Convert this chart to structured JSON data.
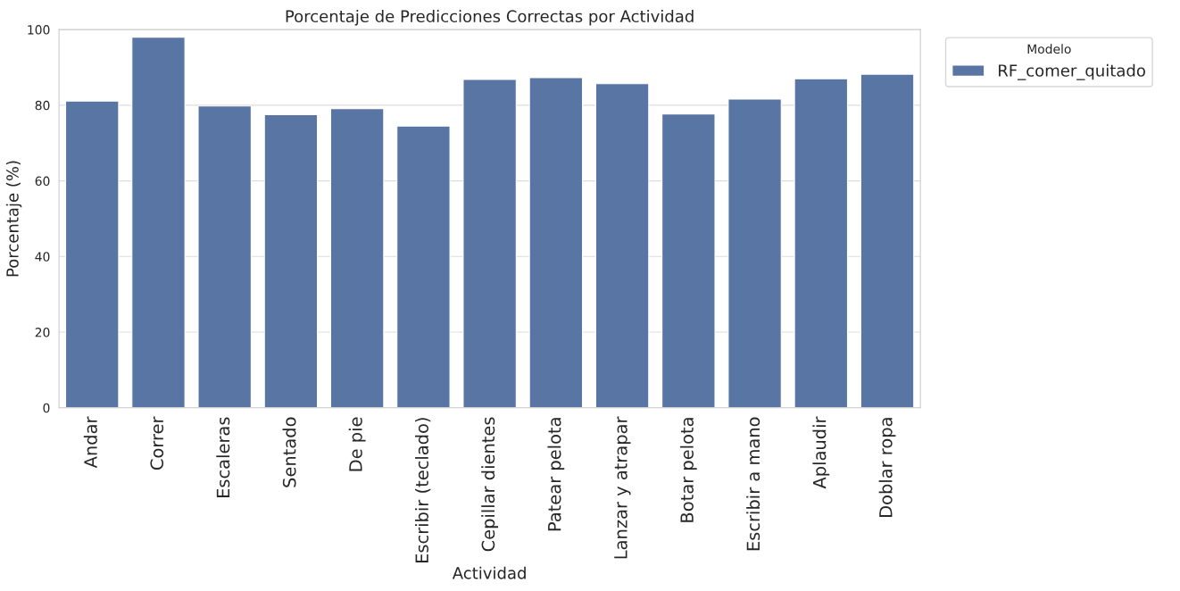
{
  "chart_data": {
    "type": "bar",
    "title": "Porcentaje de Predicciones Correctas por Actividad",
    "xlabel": "Actividad",
    "ylabel": "Porcentaje (%)",
    "legend_title": "Modelo",
    "categories": [
      "Andar",
      "Correr",
      "Escaleras",
      "Sentado",
      "De pie",
      "Escribir (teclado)",
      "Cepillar dientes",
      "Patear pelota",
      "Lanzar y atrapar",
      "Botar pelota",
      "Escribir a mano",
      "Aplaudir",
      "Doblar ropa"
    ],
    "series": [
      {
        "name": "RF_comer_quitado",
        "color": "#5875a4",
        "values": [
          81.1,
          98.0,
          79.8,
          77.5,
          79.1,
          74.5,
          86.8,
          87.3,
          85.7,
          77.7,
          81.6,
          87.0,
          88.2
        ]
      }
    ],
    "ylim": [
      0,
      100
    ],
    "yticks": [
      0,
      20,
      40,
      60,
      80,
      100
    ],
    "grid": "y",
    "legend": "top right"
  }
}
